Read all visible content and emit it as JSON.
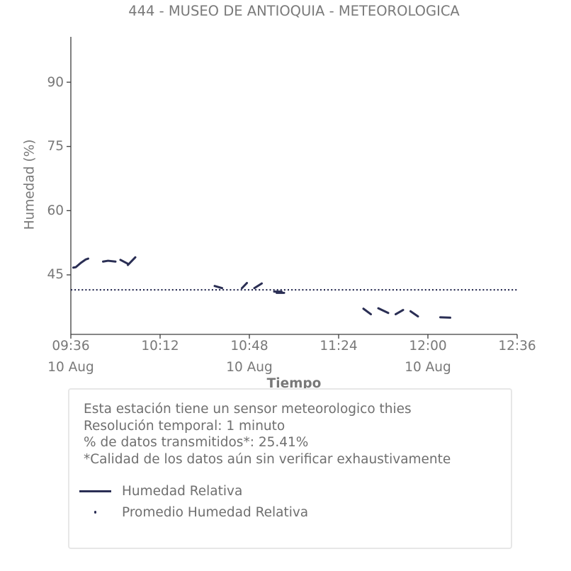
{
  "colors": {
    "series_navy": "#2a2e54",
    "text_gray": "#787878",
    "axis_line": "#3d3d3d",
    "legend_border": "#e7e7e7",
    "background": "#ffffff"
  },
  "chart_data": {
    "type": "line",
    "title": "444 - MUSEO DE ANTIOQUIA - METEOROLOGICA",
    "xlabel": "Tiempo",
    "ylabel": "Humedad (%)",
    "grid": false,
    "legend_position": "bottom",
    "x_range": [
      "09:36",
      "12:36"
    ],
    "y_range": [
      31.1,
      100.6
    ],
    "x_ticks": [
      {
        "time": "09:36",
        "date": "10 Aug"
      },
      {
        "time": "10:12",
        "date": ""
      },
      {
        "time": "10:48",
        "date": "10 Aug"
      },
      {
        "time": "11:24",
        "date": ""
      },
      {
        "time": "12:00",
        "date": "10 Aug"
      },
      {
        "time": "12:36",
        "date": ""
      }
    ],
    "y_ticks": [
      45,
      60,
      75,
      90
    ],
    "series": [
      {
        "name": "Humedad Relativa",
        "style": "solid",
        "color": "#2a2e54",
        "segments": [
          [
            [
              "09:37",
              46.7
            ],
            [
              "09:38",
              46.8
            ],
            [
              "09:40",
              47.8
            ],
            [
              "09:42",
              48.6
            ],
            [
              "09:43",
              48.8
            ]
          ],
          [
            [
              "09:49",
              48.1
            ],
            [
              "09:51",
              48.3
            ],
            [
              "09:54",
              48.1
            ]
          ],
          [
            [
              "09:56",
              48.5
            ],
            [
              "09:59",
              47.6
            ]
          ],
          [
            [
              "09:59",
              47.3
            ],
            [
              "10:02",
              49.1
            ]
          ],
          [
            [
              "10:34",
              42.4
            ],
            [
              "10:37",
              41.9
            ]
          ],
          [
            [
              "10:45",
              41.9
            ],
            [
              "10:47",
              43.1
            ]
          ],
          [
            [
              "10:50",
              41.9
            ],
            [
              "10:53",
              43.0
            ]
          ],
          [
            [
              "10:58",
              41.1
            ],
            [
              "11:01",
              41.1
            ]
          ],
          [
            [
              "10:59",
              40.8
            ],
            [
              "11:02",
              40.8
            ]
          ],
          [
            [
              "11:34",
              37.1
            ],
            [
              "11:37",
              35.8
            ]
          ],
          [
            [
              "11:40",
              37.2
            ],
            [
              "11:44",
              36.1
            ]
          ],
          [
            [
              "11:47",
              35.8
            ],
            [
              "11:50",
              36.8
            ]
          ],
          [
            [
              "11:53",
              36.5
            ],
            [
              "11:56",
              35.3
            ]
          ],
          [
            [
              "12:05",
              35.1
            ],
            [
              "12:09",
              35.0
            ]
          ]
        ]
      },
      {
        "name": "Promedio Humedad Relativa",
        "style": "dotted",
        "color": "#2a2e54",
        "value": 41.5
      }
    ],
    "annotations": [
      "Esta estación tiene un sensor meteorologico thies",
      "Resolución temporal: 1 minuto",
      "% de datos transmitidos*: 25.41%",
      "*Calidad de los datos aún sin verificar exhaustivamente"
    ]
  }
}
